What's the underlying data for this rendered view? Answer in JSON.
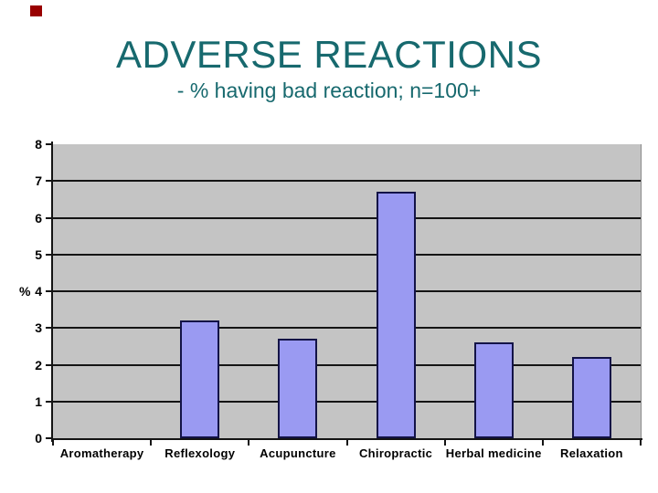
{
  "slide": {
    "marker_color": "#990000",
    "title": "ADVERSE REACTIONS",
    "subtitle": "- % having bad reaction; n=100+",
    "title_color": "#17696e"
  },
  "chart_data": {
    "type": "bar",
    "title": "",
    "categories": [
      "Aromatherapy",
      "Reflexology",
      "Acupuncture",
      "Chiropractic",
      "Herbal medicine",
      "Relaxation"
    ],
    "values": [
      0,
      3.2,
      2.7,
      6.7,
      2.6,
      2.2
    ],
    "xlabel": "",
    "ylabel": "%",
    "ylim": [
      0,
      8
    ],
    "yticks": [
      0,
      1,
      2,
      3,
      4,
      5,
      6,
      7,
      8
    ],
    "grid": true,
    "legend_position": "none",
    "plot_bg_color": "#c4c4c4",
    "bar_color": "#9a9af2",
    "bar_border_color": "#131347",
    "axis_color": "#141414"
  }
}
